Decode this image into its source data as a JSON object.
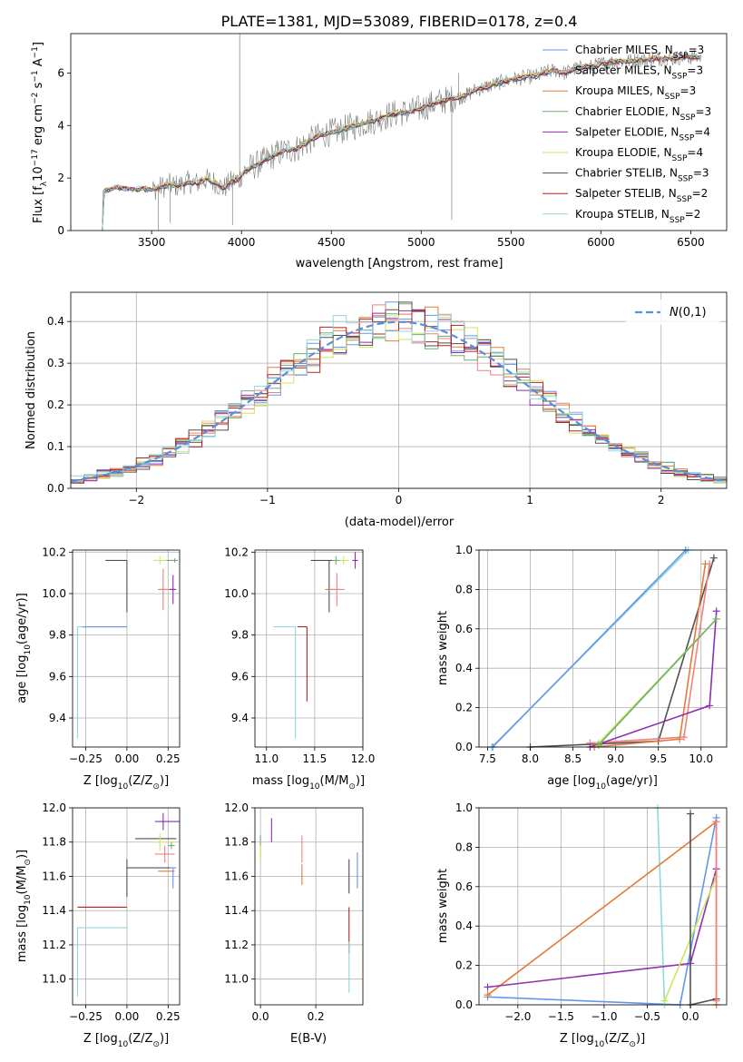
{
  "figure": {
    "title": "PLATE=1381, MJD=53089, FIBERID=0178, z=0.4"
  },
  "colors": {
    "chabrier_miles": "#6495ed",
    "salpeter_miles": "#f08080",
    "kroupa_miles": "#e07b39",
    "chabrier_elodie": "#6fae6f",
    "salpeter_elodie": "#8e2fb0",
    "kroupa_elodie": "#cde65f",
    "chabrier_stelib": "#505050",
    "salpeter_stelib": "#b22222",
    "kroupa_stelib": "#8fd8dc",
    "spectrum": "#808080",
    "normal_curve": "#5b8fdb",
    "grid": "#b0b0b0"
  },
  "chart_data": [
    {
      "id": "spectrum",
      "type": "line",
      "xlabel": "wavelength [Angstrom, rest frame]",
      "ylabel": "Flux [f$_\\lambda$10$^{-17}$ erg cm$^{-2}$ s$^{-1}$ A$^{-1}$]",
      "xlim": [
        3050,
        6700
      ],
      "ylim": [
        0,
        7.5
      ],
      "xticks": [
        3500,
        4000,
        4500,
        5000,
        5500,
        6000,
        6500
      ],
      "yticks": [
        0,
        2,
        4,
        6
      ],
      "grid": false,
      "legend_position": "top-right",
      "series": [
        {
          "name": "Chabrier MILES, N$_{SSP}$=3",
          "color_key": "chabrier_miles"
        },
        {
          "name": "Salpeter MILES, N$_{SSP}$=3",
          "color_key": "salpeter_miles"
        },
        {
          "name": "Kroupa MILES, N$_{SSP}$=3",
          "color_key": "kroupa_miles"
        },
        {
          "name": "Chabrier ELODIE, N$_{SSP}$=3",
          "color_key": "chabrier_elodie"
        },
        {
          "name": "Salpeter ELODIE, N$_{SSP}$=4",
          "color_key": "salpeter_elodie"
        },
        {
          "name": "Kroupa ELODIE, N$_{SSP}$=4",
          "color_key": "kroupa_elodie"
        },
        {
          "name": "Chabrier STELIB, N$_{SSP}$=3",
          "color_key": "chabrier_stelib"
        },
        {
          "name": "Salpeter STELIB, N$_{SSP}$=2",
          "color_key": "salpeter_stelib"
        },
        {
          "name": "Kroupa STELIB, N$_{SSP}$=2",
          "color_key": "kroupa_stelib"
        }
      ],
      "continuum": {
        "x": [
          3225,
          3250,
          3300,
          3350,
          3400,
          3450,
          3500,
          3550,
          3600,
          3650,
          3700,
          3750,
          3800,
          3850,
          3900,
          3950,
          3990,
          4000,
          4050,
          4100,
          4150,
          4200,
          4250,
          4300,
          4350,
          4400,
          4450,
          4500,
          4550,
          4600,
          4650,
          4700,
          4750,
          4800,
          4850,
          4900,
          4950,
          5000,
          5050,
          5100,
          5150,
          5200,
          5250,
          5300,
          5350,
          5400,
          5450,
          5500,
          5550,
          5600,
          5650,
          5700,
          5750,
          5800,
          5850,
          5900,
          5950,
          6000,
          6050,
          6100,
          6150,
          6200,
          6250,
          6300,
          6350,
          6400,
          6450,
          6500,
          6550
        ],
        "y": [
          1.5,
          1.55,
          1.65,
          1.6,
          1.55,
          1.6,
          1.55,
          1.65,
          1.75,
          1.7,
          1.85,
          1.8,
          1.95,
          1.85,
          1.6,
          1.9,
          1.95,
          2.15,
          2.4,
          2.55,
          2.75,
          2.95,
          3.05,
          3.1,
          3.3,
          3.5,
          3.65,
          3.75,
          3.8,
          3.95,
          4.0,
          4.15,
          4.2,
          4.35,
          4.45,
          4.5,
          4.55,
          4.65,
          4.8,
          4.9,
          5.0,
          5.05,
          5.15,
          5.35,
          5.45,
          5.55,
          5.65,
          5.75,
          5.8,
          5.85,
          5.9,
          6.05,
          6.1,
          6.0,
          6.15,
          6.2,
          6.25,
          6.35,
          6.4,
          6.45,
          6.45,
          6.5,
          6.5,
          6.55,
          6.55,
          6.55,
          6.6,
          6.6,
          6.6
        ]
      }
    },
    {
      "id": "residuals",
      "type": "line",
      "xlabel": "(data-model)/error",
      "ylabel": "Normed distribution",
      "xlim": [
        -2.5,
        2.5
      ],
      "ylim": [
        0,
        0.47
      ],
      "xticks": [
        -2,
        -1,
        0,
        1,
        2
      ],
      "yticks": [
        0.0,
        0.1,
        0.2,
        0.3,
        0.4
      ],
      "grid": true,
      "legend_position": "top-right",
      "legend_label": "$\\mathcal{N}(0,1)$",
      "hist_bin_width": 0.1,
      "normal_curve": {
        "mean": 0,
        "sigma": 1
      }
    },
    {
      "id": "age-vs-metallicity",
      "type": "scatter",
      "xlabel": "Z [log$_{10}$(Z/Z$_\\odot$)]",
      "ylabel": "age  [log$_{10}$(age/yr)]",
      "xlim": [
        -0.33,
        0.32
      ],
      "ylim": [
        9.26,
        10.21
      ],
      "xticks": [
        -0.25,
        0.0,
        0.25
      ],
      "xtick_labels": [
        "−0.25",
        "0.00",
        "0.25"
      ],
      "yticks": [
        9.4,
        9.6,
        9.8,
        10.0,
        10.2
      ],
      "grid": true
    },
    {
      "id": "age-vs-mass",
      "type": "scatter",
      "xlabel": "mass [log$_{10}$(M/M$_\\odot$)]",
      "ylabel": "",
      "xlim": [
        10.88,
        12.0
      ],
      "ylim": [
        9.26,
        10.21
      ],
      "xticks": [
        11.0,
        11.5,
        12.0
      ],
      "yticks": [
        9.4,
        9.6,
        9.8,
        10.0,
        10.2
      ],
      "grid": true
    },
    {
      "id": "weight-vs-age",
      "type": "line",
      "xlabel": "age  [log$_{10}$(age/yr)]",
      "ylabel": "mass weight",
      "xlim": [
        7.4,
        10.3
      ],
      "ylim": [
        0,
        1.0
      ],
      "xticks": [
        7.5,
        8.0,
        8.5,
        9.0,
        9.5,
        10.0
      ],
      "yticks": [
        0.0,
        0.2,
        0.4,
        0.6,
        0.8,
        1.0
      ],
      "grid": true,
      "series": [
        {
          "color_key": "kroupa_stelib",
          "points": [
            [
              7.55,
              0.0
            ],
            [
              9.85,
              1.0
            ]
          ]
        },
        {
          "color_key": "chabrier_miles",
          "points": [
            [
              7.56,
              0.0
            ],
            [
              9.82,
              1.0
            ]
          ]
        },
        {
          "color_key": "chabrier_stelib",
          "points": [
            [
              8.0,
              0.0
            ],
            [
              9.5,
              0.03
            ],
            [
              10.15,
              0.96
            ]
          ]
        },
        {
          "color_key": "kroupa_miles",
          "points": [
            [
              8.75,
              0.0
            ],
            [
              9.75,
              0.04
            ],
            [
              10.05,
              0.93
            ]
          ]
        },
        {
          "color_key": "salpeter_miles",
          "points": [
            [
              8.7,
              0.02
            ],
            [
              9.8,
              0.05
            ],
            [
              10.1,
              0.93
            ]
          ]
        },
        {
          "color_key": "salpeter_elodie",
          "points": [
            [
              8.7,
              0.0
            ],
            [
              10.1,
              0.21
            ],
            [
              10.18,
              0.69
            ]
          ]
        },
        {
          "color_key": "kroupa_elodie",
          "points": [
            [
              8.8,
              0.02
            ],
            [
              10.18,
              0.65
            ]
          ]
        },
        {
          "color_key": "chabrier_elodie",
          "points": [
            [
              8.8,
              0.01
            ],
            [
              10.18,
              0.65
            ]
          ]
        }
      ]
    },
    {
      "id": "mass-vs-metallicity",
      "type": "scatter",
      "xlabel": "Z [log$_{10}$(Z/Z$_\\odot$)]",
      "ylabel": "mass [log$_{10}$(M/M$_\\odot$)]",
      "xlim": [
        -0.33,
        0.32
      ],
      "ylim": [
        10.85,
        12.0
      ],
      "xticks": [
        -0.25,
        0.0,
        0.25
      ],
      "xtick_labels": [
        "−0.25",
        "0.00",
        "0.25"
      ],
      "yticks": [
        11.0,
        11.2,
        11.4,
        11.6,
        11.8,
        12.0
      ],
      "grid": true
    },
    {
      "id": "mass-vs-ebv",
      "type": "scatter",
      "xlabel": "E(B-V)",
      "ylabel": "",
      "xlim": [
        -0.02,
        0.37
      ],
      "ylim": [
        10.85,
        12.0
      ],
      "xticks": [
        0.0,
        0.2
      ],
      "yticks": [
        11.0,
        11.2,
        11.4,
        11.6,
        11.8,
        12.0
      ],
      "grid": true
    },
    {
      "id": "weight-vs-metallicity",
      "type": "line",
      "xlabel": "Z [log$_{10}$(Z/Z$_\\odot$)]",
      "ylabel": "mass weight",
      "xlim": [
        -2.45,
        0.42
      ],
      "ylim": [
        0,
        1.0
      ],
      "xticks": [
        -2.0,
        -1.5,
        -1.0,
        -0.5,
        0.0
      ],
      "xtick_labels": [
        "−2.0",
        "−1.5",
        "−1.0",
        "−0.5",
        "0.0"
      ],
      "yticks": [
        0.0,
        0.2,
        0.4,
        0.6,
        0.8,
        1.0
      ],
      "grid": true,
      "series": [
        {
          "color_key": "kroupa_stelib",
          "points": [
            [
              -0.38,
              1.0
            ],
            [
              -0.3,
              0.0
            ]
          ]
        },
        {
          "color_key": "chabrier_miles",
          "points": [
            [
              -2.35,
              0.04
            ],
            [
              -0.12,
              0.0
            ],
            [
              0.3,
              0.95
            ]
          ]
        },
        {
          "color_key": "kroupa_miles",
          "points": [
            [
              -2.35,
              0.05
            ],
            [
              0.3,
              0.93
            ],
            [
              0.3,
              0.0
            ]
          ]
        },
        {
          "color_key": "salpeter_elodie",
          "points": [
            [
              -2.35,
              0.09
            ],
            [
              0.0,
              0.21
            ],
            [
              0.3,
              0.69
            ]
          ]
        },
        {
          "color_key": "kroupa_elodie",
          "points": [
            [
              -0.3,
              0.02
            ],
            [
              0.3,
              0.65
            ]
          ]
        },
        {
          "color_key": "chabrier_stelib",
          "points": [
            [
              0.0,
              0.97
            ],
            [
              0.0,
              0.0
            ],
            [
              0.3,
              0.03
            ]
          ]
        },
        {
          "color_key": "salpeter_miles",
          "points": [
            [
              0.3,
              0.93
            ],
            [
              0.3,
              0.02
            ]
          ]
        }
      ]
    }
  ]
}
